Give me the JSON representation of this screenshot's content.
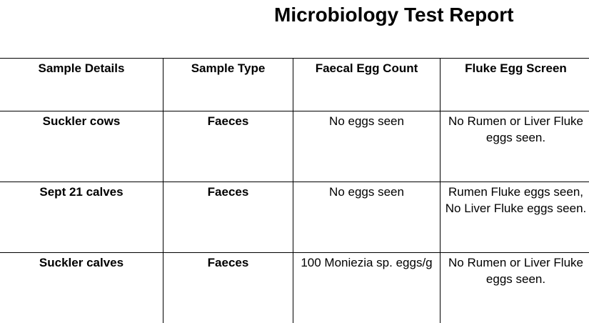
{
  "report": {
    "title": "Microbiology Test Report"
  },
  "table": {
    "headers": [
      "Sample Details",
      "Sample Type",
      "Faecal Egg Count",
      "Fluke Egg Screen"
    ],
    "rows": [
      {
        "sample_details": "Suckler cows",
        "sample_type": "Faeces",
        "faecal_egg_count": "No eggs seen",
        "fluke_egg_screen": "No Rumen or Liver Fluke eggs seen."
      },
      {
        "sample_details": "Sept 21 calves",
        "sample_type": "Faeces",
        "faecal_egg_count": "No eggs seen",
        "fluke_egg_screen": "Rumen Fluke eggs seen, No Liver Fluke eggs seen."
      },
      {
        "sample_details": "Suckler calves",
        "sample_type": "Faeces",
        "faecal_egg_count": "100 Moniezia sp. eggs/g",
        "fluke_egg_screen": "No Rumen or Liver Fluke eggs seen."
      }
    ]
  }
}
